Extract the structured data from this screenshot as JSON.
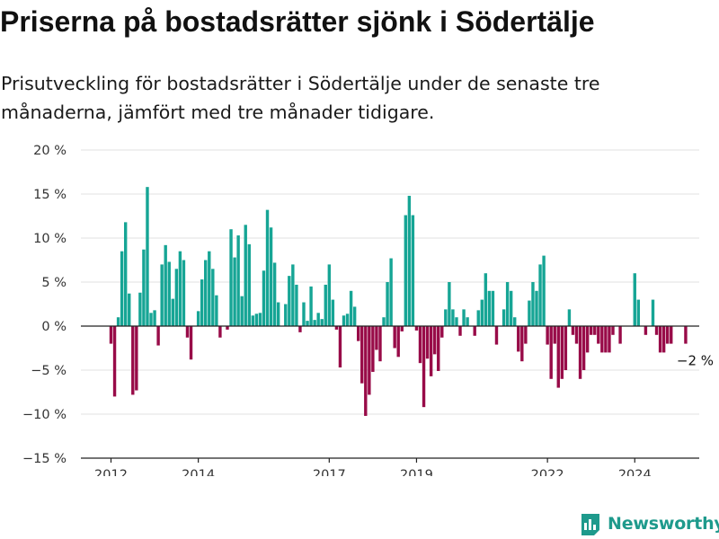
{
  "title": "Priserna på bostadsrätter sjönk i Södertälje",
  "subtitle": "Prisutveckling för bostadsrätter i Södertälje under de senaste tre månaderna, jämfört med tre månader tidigare.",
  "brand": {
    "name": "Newsworthy",
    "icon": "newsworthy-logo-icon"
  },
  "colors": {
    "positive": "#16a595",
    "negative": "#980b48",
    "axis": "#222222",
    "grid": "#e0e0e0",
    "brand": "#1e9a8c"
  },
  "chart_data": {
    "type": "bar",
    "ylim": [
      -15,
      20
    ],
    "yticks": [
      -15,
      -10,
      -5,
      0,
      5,
      10,
      15,
      20
    ],
    "ytick_labels": [
      "−15 %",
      "−10 %",
      "−5 %",
      "0 %",
      "5 %",
      "10 %",
      "15 %",
      "20 %"
    ],
    "xtick_labels": [
      "2012",
      "2014",
      "2017",
      "2019",
      "2022",
      "2024"
    ],
    "xtick_dates": [
      "2012-01",
      "2014-01",
      "2017-01",
      "2019-01",
      "2022-01",
      "2024-01"
    ],
    "grid": true,
    "annotation": {
      "text": "−2 %",
      "date": "2025-03",
      "value": -2
    },
    "x": [
      "2012-01",
      "2012-02",
      "2012-03",
      "2012-04",
      "2012-05",
      "2012-06",
      "2012-07",
      "2012-08",
      "2012-09",
      "2012-10",
      "2012-11",
      "2012-12",
      "2013-01",
      "2013-02",
      "2013-03",
      "2013-04",
      "2013-05",
      "2013-06",
      "2013-07",
      "2013-08",
      "2013-09",
      "2013-10",
      "2013-11",
      "2013-12",
      "2014-01",
      "2014-02",
      "2014-03",
      "2014-04",
      "2014-05",
      "2014-06",
      "2014-07",
      "2014-08",
      "2014-09",
      "2014-10",
      "2014-11",
      "2014-12",
      "2015-01",
      "2015-02",
      "2015-03",
      "2015-04",
      "2015-05",
      "2015-06",
      "2015-07",
      "2015-08",
      "2015-09",
      "2015-10",
      "2015-11",
      "2015-12",
      "2016-01",
      "2016-02",
      "2016-03",
      "2016-04",
      "2016-05",
      "2016-06",
      "2016-07",
      "2016-08",
      "2016-09",
      "2016-10",
      "2016-11",
      "2016-12",
      "2017-01",
      "2017-02",
      "2017-03",
      "2017-04",
      "2017-05",
      "2017-06",
      "2017-07",
      "2017-08",
      "2017-09",
      "2017-10",
      "2017-11",
      "2017-12",
      "2018-01",
      "2018-02",
      "2018-03",
      "2018-04",
      "2018-05",
      "2018-06",
      "2018-07",
      "2018-08",
      "2018-09",
      "2018-10",
      "2018-11",
      "2018-12",
      "2019-01",
      "2019-02",
      "2019-03",
      "2019-04",
      "2019-05",
      "2019-06",
      "2019-07",
      "2019-08",
      "2019-09",
      "2019-10",
      "2019-11",
      "2019-12",
      "2020-01",
      "2020-02",
      "2020-03",
      "2020-04",
      "2020-05",
      "2020-06",
      "2020-07",
      "2020-08",
      "2020-09",
      "2020-10",
      "2020-11",
      "2020-12",
      "2021-01",
      "2021-02",
      "2021-03",
      "2021-04",
      "2021-05",
      "2021-06",
      "2021-07",
      "2021-08",
      "2021-09",
      "2021-10",
      "2021-11",
      "2021-12",
      "2022-01",
      "2022-02",
      "2022-03",
      "2022-04",
      "2022-05",
      "2022-06",
      "2022-07",
      "2022-08",
      "2022-09",
      "2022-10",
      "2022-11",
      "2022-12",
      "2023-01",
      "2023-02",
      "2023-03",
      "2023-04",
      "2023-05",
      "2023-06",
      "2023-07",
      "2023-08",
      "2023-09",
      "2023-10",
      "2023-11",
      "2023-12",
      "2024-01",
      "2024-02",
      "2024-03",
      "2024-04",
      "2024-05",
      "2024-06",
      "2024-07",
      "2024-08",
      "2024-09",
      "2024-10",
      "2024-11",
      "2024-12",
      "2025-01",
      "2025-02",
      "2025-03"
    ],
    "values": [
      -2,
      -8,
      1,
      8.5,
      11.8,
      3.7,
      -7.8,
      -7.3,
      3.8,
      8.7,
      15.8,
      1.5,
      1.8,
      -2.2,
      7,
      9.2,
      7.3,
      3.1,
      6.5,
      8.5,
      7.5,
      -1.3,
      -3.8,
      0,
      1.7,
      5.3,
      7.5,
      8.5,
      6.5,
      3.5,
      -1.3,
      0,
      -0.4,
      11,
      7.8,
      10.3,
      3.4,
      11.5,
      9.3,
      1.2,
      1.4,
      1.5,
      6.3,
      13.2,
      11.2,
      7.2,
      2.7,
      0,
      2.5,
      5.7,
      7,
      4.7,
      -0.7,
      2.7,
      0.6,
      4.5,
      0.7,
      1.5,
      0.8,
      4.7,
      7,
      3,
      -0.4,
      -4.7,
      1.2,
      1.4,
      4,
      2.2,
      -1.7,
      -6.5,
      -10.2,
      -7.8,
      -5.2,
      -2.7,
      -4,
      1,
      5,
      7.7,
      -2.5,
      -3.5,
      -0.6,
      12.6,
      14.8,
      12.6,
      -0.5,
      -4.2,
      -9.2,
      -3.7,
      -5.7,
      -3.2,
      -5.1,
      -1.3,
      1.9,
      5,
      1.9,
      1,
      -1.1,
      1.9,
      1,
      0,
      -1.1,
      1.8,
      3,
      6,
      4,
      4,
      -2.1,
      0,
      1.9,
      5,
      4,
      1,
      -2.9,
      -4,
      -2,
      2.9,
      5,
      4,
      7,
      8,
      -2.1,
      -6,
      -2,
      -7,
      -6,
      -5,
      1.9,
      -1,
      -2,
      -6,
      -5,
      -3,
      -1,
      -1,
      -2,
      -3,
      -3,
      -3,
      -1,
      0,
      -2,
      0,
      0,
      0,
      6,
      3,
      0,
      -1,
      0,
      3,
      -1,
      -3,
      -3,
      -2,
      -2,
      0,
      0,
      0,
      -2
    ]
  }
}
